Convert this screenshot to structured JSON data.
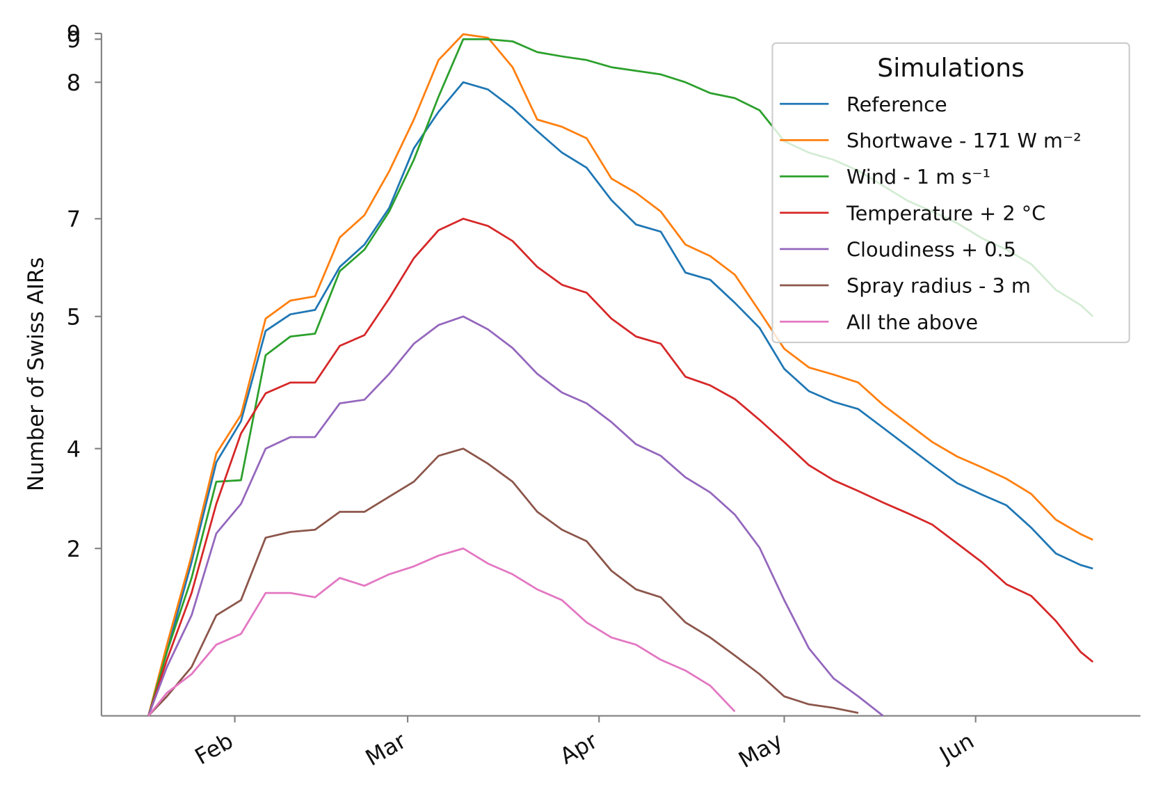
{
  "chart_data": {
    "type": "line",
    "y_label": "Number of Swiss AIRs",
    "legend_title": "Simulations",
    "legend_position": "upper right",
    "x": [
      17,
      20,
      24,
      28,
      32,
      36,
      40,
      44,
      48,
      52,
      56,
      60,
      64,
      68,
      72,
      76,
      80,
      84,
      88,
      92,
      96,
      100,
      104,
      108,
      112,
      116,
      120,
      124,
      128,
      132,
      136,
      140,
      144,
      148,
      152,
      156,
      160,
      164,
      168,
      170
    ],
    "xlim": [
      9.4,
      177.7
    ],
    "xticks": [
      {
        "value": 31,
        "label": "Feb"
      },
      {
        "value": 59,
        "label": "Mar"
      },
      {
        "value": 90,
        "label": "Apr"
      },
      {
        "value": 120,
        "label": "May"
      },
      {
        "value": 151,
        "label": "Jun"
      }
    ],
    "ylim": [
      0,
      9.5
    ],
    "yticks": [
      {
        "value": 9.5,
        "label": "9"
      },
      {
        "value": 9.42,
        "label": "9"
      },
      {
        "value": 8.82,
        "label": "8"
      },
      {
        "value": 6.92,
        "label": "7"
      },
      {
        "value": 5.56,
        "label": "5"
      },
      {
        "value": 3.72,
        "label": "4"
      },
      {
        "value": 2.33,
        "label": "2"
      }
    ],
    "series": [
      {
        "name": "Reference",
        "color": "#1f77b4",
        "values": [
          0,
          0.89,
          2.14,
          3.53,
          4.1,
          5.36,
          5.59,
          5.65,
          6.25,
          6.56,
          7.07,
          7.9,
          8.41,
          8.82,
          8.72,
          8.46,
          8.14,
          7.84,
          7.63,
          7.18,
          6.84,
          6.74,
          6.17,
          6.07,
          5.75,
          5.4,
          4.83,
          4.52,
          4.37,
          4.27,
          4.01,
          3.75,
          3.49,
          3.24,
          3.08,
          2.93,
          2.62,
          2.26,
          2.1,
          2.05
        ]
      },
      {
        "name": "Shortwave - 171 W m⁻²",
        "color": "#ff7f0e",
        "values": [
          0,
          0.99,
          2.23,
          3.65,
          4.19,
          5.53,
          5.78,
          5.84,
          6.66,
          6.97,
          7.58,
          8.3,
          9.13,
          9.49,
          9.44,
          9.03,
          8.3,
          8.2,
          8.04,
          7.48,
          7.28,
          7.02,
          6.56,
          6.4,
          6.14,
          5.63,
          5.11,
          4.85,
          4.75,
          4.64,
          4.33,
          4.07,
          3.81,
          3.61,
          3.46,
          3.3,
          3.09,
          2.73,
          2.53,
          2.45
        ]
      },
      {
        "name": "Wind - 1 m s⁻¹",
        "color": "#2ca02c",
        "values": [
          0,
          0.89,
          1.92,
          3.26,
          3.28,
          5.02,
          5.28,
          5.32,
          6.19,
          6.49,
          7.02,
          7.74,
          8.62,
          9.42,
          9.42,
          9.39,
          9.24,
          9.18,
          9.13,
          9.03,
          8.98,
          8.93,
          8.82,
          8.67,
          8.6,
          8.43,
          8.0,
          7.84,
          7.74,
          7.59,
          7.38,
          7.17,
          7.02,
          6.86,
          6.65,
          6.49,
          6.29,
          5.93,
          5.72,
          5.56
        ]
      },
      {
        "name": "Temperature + 2 °C",
        "color": "#d62728",
        "values": [
          0,
          0.78,
          1.71,
          2.95,
          3.93,
          4.49,
          4.64,
          4.64,
          5.15,
          5.3,
          5.81,
          6.37,
          6.76,
          6.92,
          6.82,
          6.61,
          6.25,
          6.0,
          5.89,
          5.53,
          5.28,
          5.18,
          4.72,
          4.6,
          4.41,
          4.12,
          3.81,
          3.49,
          3.28,
          3.13,
          2.97,
          2.82,
          2.66,
          2.4,
          2.14,
          1.83,
          1.67,
          1.32,
          0.89,
          0.75
        ]
      },
      {
        "name": "Cloudiness + 0.5",
        "color": "#9467bd",
        "values": [
          0,
          0.68,
          1.4,
          2.54,
          2.95,
          3.72,
          3.88,
          3.88,
          4.35,
          4.4,
          4.76,
          5.18,
          5.44,
          5.56,
          5.38,
          5.12,
          4.76,
          4.5,
          4.35,
          4.09,
          3.78,
          3.62,
          3.32,
          3.11,
          2.8,
          2.34,
          1.61,
          0.94,
          0.52,
          0.27,
          0,
          null,
          null,
          null,
          null,
          null,
          null,
          null,
          null,
          null
        ]
      },
      {
        "name": "Spray radius - 3 m",
        "color": "#8c564b",
        "values": [
          0,
          0.27,
          0.68,
          1.4,
          1.61,
          2.48,
          2.56,
          2.59,
          2.84,
          2.84,
          3.05,
          3.26,
          3.62,
          3.72,
          3.51,
          3.26,
          2.84,
          2.59,
          2.43,
          2.02,
          1.76,
          1.65,
          1.3,
          1.09,
          0.84,
          0.58,
          0.27,
          0.16,
          0.11,
          0.04,
          null,
          null,
          null,
          null,
          null,
          null,
          null,
          null,
          null,
          null
        ]
      },
      {
        "name": "All the above",
        "color": "#e377c2",
        "values": [
          0,
          0.32,
          0.58,
          0.99,
          1.14,
          1.71,
          1.71,
          1.65,
          1.92,
          1.81,
          1.97,
          2.08,
          2.23,
          2.33,
          2.12,
          1.97,
          1.76,
          1.61,
          1.3,
          1.09,
          0.99,
          0.78,
          0.63,
          0.42,
          0.06,
          null,
          null,
          null,
          null,
          null,
          null,
          null,
          null,
          null,
          null,
          null,
          null,
          null,
          null,
          null
        ]
      }
    ]
  }
}
